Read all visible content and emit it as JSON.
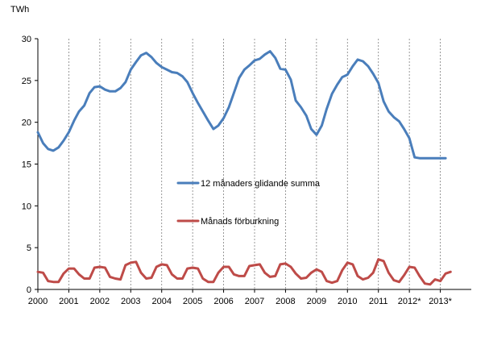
{
  "chart_data": {
    "type": "line",
    "ylabel": "TWh",
    "ylim": [
      0,
      30
    ],
    "yticks": [
      0,
      5,
      10,
      15,
      20,
      25,
      30
    ],
    "xlim": [
      2000,
      2014
    ],
    "xticks": [
      {
        "value": 2000,
        "label": "2000"
      },
      {
        "value": 2001,
        "label": "2001"
      },
      {
        "value": 2002,
        "label": "2002"
      },
      {
        "value": 2003,
        "label": "2003"
      },
      {
        "value": 2004,
        "label": "2004"
      },
      {
        "value": 2005,
        "label": "2005"
      },
      {
        "value": 2006,
        "label": "2006"
      },
      {
        "value": 2007,
        "label": "2007"
      },
      {
        "value": 2008,
        "label": "2008"
      },
      {
        "value": 2009,
        "label": "2009"
      },
      {
        "value": 2010,
        "label": "2010"
      },
      {
        "value": 2011,
        "label": "2011"
      },
      {
        "value": 2012,
        "label": "2012*"
      },
      {
        "value": 2013,
        "label": "2013*"
      }
    ],
    "grid": "vertical dashed lines at each year",
    "legend_placement": "inside center",
    "series": [
      {
        "name": "12 månaders glidande summa",
        "color": "#4a7ebb",
        "x": [
          2000.0,
          2000.17,
          2000.33,
          2000.5,
          2000.67,
          2000.83,
          2001.0,
          2001.17,
          2001.33,
          2001.5,
          2001.67,
          2001.83,
          2002.0,
          2002.17,
          2002.33,
          2002.5,
          2002.67,
          2002.83,
          2003.0,
          2003.17,
          2003.33,
          2003.5,
          2003.67,
          2003.83,
          2004.0,
          2004.17,
          2004.33,
          2004.5,
          2004.67,
          2004.83,
          2005.0,
          2005.17,
          2005.33,
          2005.5,
          2005.67,
          2005.83,
          2006.0,
          2006.17,
          2006.33,
          2006.5,
          2006.67,
          2006.83,
          2007.0,
          2007.17,
          2007.33,
          2007.5,
          2007.67,
          2007.83,
          2008.0,
          2008.17,
          2008.33,
          2008.5,
          2008.67,
          2008.83,
          2009.0,
          2009.17,
          2009.33,
          2009.5,
          2009.67,
          2009.83,
          2010.0,
          2010.17,
          2010.33,
          2010.5,
          2010.67,
          2010.83,
          2011.0,
          2011.17,
          2011.33,
          2011.5,
          2011.67,
          2011.83,
          2012.0,
          2012.17,
          2012.33,
          2012.5,
          2012.67,
          2012.83,
          2013.0,
          2013.17,
          2013.33
        ],
        "y": [
          18.8,
          17.5,
          16.8,
          16.6,
          17.0,
          17.8,
          18.8,
          20.2,
          21.3,
          22.0,
          23.5,
          24.2,
          24.3,
          23.9,
          23.7,
          23.7,
          24.1,
          24.8,
          26.3,
          27.2,
          28.0,
          28.3,
          27.8,
          27.1,
          26.6,
          26.3,
          26.0,
          25.9,
          25.5,
          24.8,
          23.5,
          22.3,
          21.3,
          20.2,
          19.2,
          19.6,
          20.5,
          21.8,
          23.5,
          25.3,
          26.3,
          26.8,
          27.4,
          27.6,
          28.1,
          28.5,
          27.7,
          26.4,
          26.3,
          25.1,
          22.6,
          21.8,
          20.8,
          19.2,
          18.5,
          19.6,
          21.6,
          23.4,
          24.5,
          25.4,
          25.7,
          26.7,
          27.5,
          27.3,
          26.7,
          25.8,
          24.7,
          22.5,
          21.3,
          20.6,
          20.1,
          19.2,
          18.1,
          15.8,
          15.7,
          15.7,
          15.7,
          15.7,
          15.7,
          15.7,
          15.7
        ],
        "y_note_hidden": true
      },
      {
        "name": "Månads förburkning",
        "color": "#be4b48",
        "x": [
          2000.0,
          2000.17,
          2000.33,
          2000.5,
          2000.67,
          2000.83,
          2001.0,
          2001.17,
          2001.33,
          2001.5,
          2001.67,
          2001.83,
          2002.0,
          2002.17,
          2002.33,
          2002.5,
          2002.67,
          2002.83,
          2003.0,
          2003.17,
          2003.33,
          2003.5,
          2003.67,
          2003.83,
          2004.0,
          2004.17,
          2004.33,
          2004.5,
          2004.67,
          2004.83,
          2005.0,
          2005.17,
          2005.33,
          2005.5,
          2005.67,
          2005.83,
          2006.0,
          2006.17,
          2006.33,
          2006.5,
          2006.67,
          2006.83,
          2007.0,
          2007.17,
          2007.33,
          2007.5,
          2007.67,
          2007.83,
          2008.0,
          2008.17,
          2008.33,
          2008.5,
          2008.67,
          2008.83,
          2009.0,
          2009.17,
          2009.33,
          2009.5,
          2009.67,
          2009.83,
          2010.0,
          2010.17,
          2010.33,
          2010.5,
          2010.67,
          2010.83,
          2011.0,
          2011.17,
          2011.33,
          2011.5,
          2011.67,
          2011.83,
          2012.0,
          2012.17,
          2012.33,
          2012.5,
          2012.67,
          2012.83,
          2013.0,
          2013.17,
          2013.33
        ],
        "y": [
          2.1,
          2.0,
          1.0,
          0.9,
          0.9,
          1.9,
          2.5,
          2.5,
          1.8,
          1.3,
          1.3,
          2.6,
          2.7,
          2.6,
          1.5,
          1.3,
          1.2,
          2.9,
          3.2,
          3.3,
          2.0,
          1.3,
          1.4,
          2.7,
          3.0,
          2.9,
          1.8,
          1.3,
          1.3,
          2.5,
          2.6,
          2.5,
          1.3,
          0.9,
          0.9,
          2.0,
          2.7,
          2.7,
          1.8,
          1.6,
          1.6,
          2.8,
          2.9,
          3.0,
          2.0,
          1.5,
          1.6,
          3.0,
          3.1,
          2.7,
          1.9,
          1.3,
          1.4,
          2.0,
          2.4,
          2.1,
          1.0,
          0.8,
          1.0,
          2.3,
          3.2,
          3.0,
          1.6,
          1.2,
          1.4,
          2.0,
          3.6,
          3.4,
          2.0,
          1.1,
          0.9,
          1.7,
          2.7,
          2.6,
          1.6,
          0.7,
          0.6,
          1.2,
          1.0,
          1.9,
          2.1
        ]
      }
    ]
  }
}
